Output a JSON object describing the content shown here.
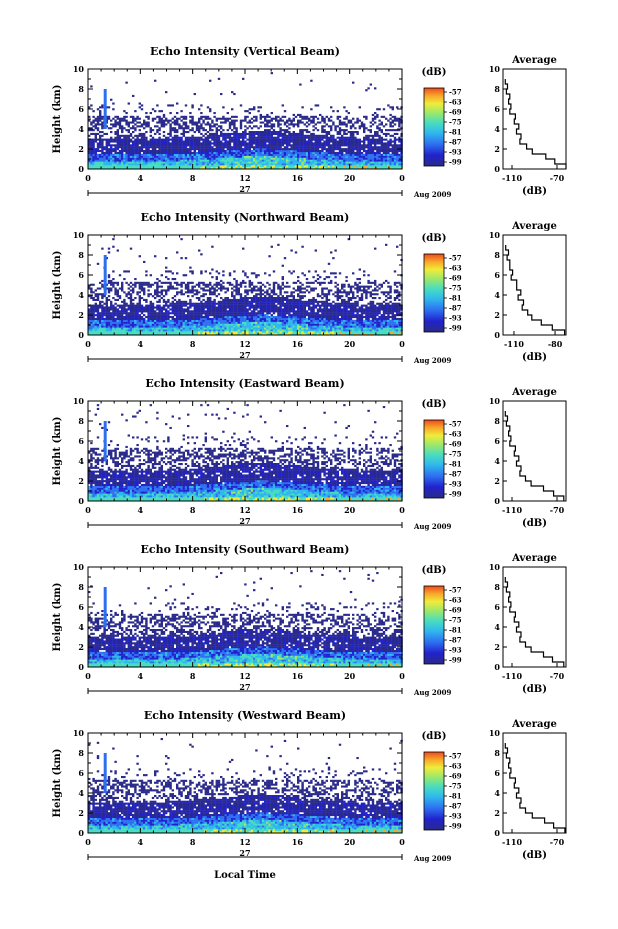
{
  "chart_data": [
    {
      "type": "heatmap",
      "title": "Echo Intensity (Vertical Beam)",
      "ylabel": "Height (km)",
      "ylim": [
        0,
        10
      ],
      "yticks": [
        "0",
        "2",
        "4",
        "6",
        "8",
        "10"
      ],
      "xlim": [
        0,
        24
      ],
      "xticks": [
        "0",
        "4",
        "8",
        "12",
        "16",
        "20",
        "0"
      ],
      "date_label": "27",
      "date_suffix": "Aug 2009",
      "colorbar": {
        "unit": "(dB)",
        "ticks": [
          "-57",
          "-63",
          "-69",
          "-75",
          "-81",
          "-87",
          "-93",
          "-99"
        ]
      },
      "average": {
        "title": "Average",
        "xlabel": "(dB)",
        "xticks": [
          "-110",
          "-70"
        ],
        "xlim": [
          -118,
          -62
        ],
        "profile": [
          [
            -62,
            0.0
          ],
          [
            -72,
            0.5
          ],
          [
            -80,
            1.0
          ],
          [
            -92,
            1.5
          ],
          [
            -97,
            2.0
          ],
          [
            -103,
            2.5
          ],
          [
            -102,
            3.0
          ],
          [
            -106,
            3.5
          ],
          [
            -104,
            4.0
          ],
          [
            -108,
            4.5
          ],
          [
            -107,
            5.0
          ],
          [
            -112,
            5.5
          ],
          [
            -111,
            6.0
          ],
          [
            -113,
            6.5
          ],
          [
            -112,
            7.0
          ],
          [
            -115,
            7.5
          ],
          [
            -114,
            8.0
          ],
          [
            -116,
            8.5
          ],
          [
            -116,
            9.0
          ]
        ]
      }
    },
    {
      "type": "heatmap",
      "title": "Echo Intensity (Northward Beam)",
      "ylabel": "Height (km)",
      "ylim": [
        0,
        10
      ],
      "yticks": [
        "0",
        "2",
        "4",
        "6",
        "8",
        "10"
      ],
      "xlim": [
        0,
        24
      ],
      "xticks": [
        "0",
        "4",
        "8",
        "12",
        "16",
        "20",
        "0"
      ],
      "date_label": "27",
      "date_suffix": "Aug 2009",
      "colorbar": {
        "unit": "(dB)",
        "ticks": [
          "-57",
          "-63",
          "-69",
          "-75",
          "-81",
          "-87",
          "-93",
          "-99"
        ]
      },
      "average": {
        "title": "Average",
        "xlabel": "(dB)",
        "xticks": [
          "-110",
          "-80"
        ],
        "xlim": [
          -118,
          -72
        ],
        "profile": [
          [
            -73,
            0.0
          ],
          [
            -82,
            0.5
          ],
          [
            -90,
            1.0
          ],
          [
            -97,
            1.5
          ],
          [
            -100,
            2.0
          ],
          [
            -104,
            2.5
          ],
          [
            -103,
            3.0
          ],
          [
            -107,
            3.5
          ],
          [
            -105,
            4.0
          ],
          [
            -108,
            4.5
          ],
          [
            -108,
            5.0
          ],
          [
            -112,
            5.5
          ],
          [
            -111,
            6.0
          ],
          [
            -113,
            6.5
          ],
          [
            -113,
            7.0
          ],
          [
            -115,
            7.5
          ],
          [
            -114,
            8.0
          ],
          [
            -116,
            8.5
          ],
          [
            -116,
            9.0
          ]
        ]
      }
    },
    {
      "type": "heatmap",
      "title": "Echo Intensity (Eastward Beam)",
      "ylabel": "Height (km)",
      "ylim": [
        0,
        10
      ],
      "yticks": [
        "0",
        "2",
        "4",
        "6",
        "8",
        "10"
      ],
      "xlim": [
        0,
        24
      ],
      "xticks": [
        "0",
        "4",
        "8",
        "12",
        "16",
        "20",
        "0"
      ],
      "date_label": "27",
      "date_suffix": "Aug 2009",
      "colorbar": {
        "unit": "(dB)",
        "ticks": [
          "-57",
          "-63",
          "-69",
          "-75",
          "-81",
          "-87",
          "-93",
          "-99"
        ]
      },
      "average": {
        "title": "Average",
        "xlabel": "(dB)",
        "xticks": [
          "-110",
          "-70"
        ],
        "xlim": [
          -118,
          -62
        ],
        "profile": [
          [
            -64,
            0.0
          ],
          [
            -73,
            0.5
          ],
          [
            -82,
            1.0
          ],
          [
            -93,
            1.5
          ],
          [
            -98,
            2.0
          ],
          [
            -103,
            2.5
          ],
          [
            -102,
            3.0
          ],
          [
            -106,
            3.5
          ],
          [
            -104,
            4.0
          ],
          [
            -108,
            4.5
          ],
          [
            -107,
            5.0
          ],
          [
            -112,
            5.5
          ],
          [
            -111,
            6.0
          ],
          [
            -113,
            6.5
          ],
          [
            -112,
            7.0
          ],
          [
            -115,
            7.5
          ],
          [
            -114,
            8.0
          ],
          [
            -116,
            8.5
          ],
          [
            -116,
            9.0
          ]
        ]
      }
    },
    {
      "type": "heatmap",
      "title": "Echo Intensity (Southward Beam)",
      "ylabel": "Height (km)",
      "ylim": [
        0,
        10
      ],
      "yticks": [
        "0",
        "2",
        "4",
        "6",
        "8",
        "10"
      ],
      "xlim": [
        0,
        24
      ],
      "xticks": [
        "0",
        "4",
        "8",
        "12",
        "16",
        "20",
        "0"
      ],
      "date_label": "27",
      "date_suffix": "Aug 2009",
      "colorbar": {
        "unit": "(dB)",
        "ticks": [
          "-57",
          "-63",
          "-69",
          "-75",
          "-81",
          "-87",
          "-93",
          "-99"
        ]
      },
      "average": {
        "title": "Average",
        "xlabel": "(dB)",
        "xticks": [
          "-110",
          "-70"
        ],
        "xlim": [
          -118,
          -62
        ],
        "profile": [
          [
            -64,
            0.0
          ],
          [
            -74,
            0.5
          ],
          [
            -82,
            1.0
          ],
          [
            -93,
            1.5
          ],
          [
            -98,
            2.0
          ],
          [
            -103,
            2.5
          ],
          [
            -102,
            3.0
          ],
          [
            -106,
            3.5
          ],
          [
            -104,
            4.0
          ],
          [
            -108,
            4.5
          ],
          [
            -107,
            5.0
          ],
          [
            -112,
            5.5
          ],
          [
            -111,
            6.0
          ],
          [
            -113,
            6.5
          ],
          [
            -112,
            7.0
          ],
          [
            -115,
            7.5
          ],
          [
            -114,
            8.0
          ],
          [
            -116,
            8.5
          ],
          [
            -116,
            9.0
          ]
        ]
      }
    },
    {
      "type": "heatmap",
      "title": "Echo Intensity (Westward Beam)",
      "ylabel": "Height (km)",
      "ylim": [
        0,
        10
      ],
      "yticks": [
        "0",
        "2",
        "4",
        "6",
        "8",
        "10"
      ],
      "xlim": [
        0,
        24
      ],
      "xticks": [
        "0",
        "4",
        "8",
        "12",
        "16",
        "20",
        "0"
      ],
      "date_label": "27",
      "date_suffix": "Aug 2009",
      "xlabel": "Local Time",
      "colorbar": {
        "unit": "(dB)",
        "ticks": [
          "-57",
          "-63",
          "-69",
          "-75",
          "-81",
          "-87",
          "-93",
          "-99"
        ]
      },
      "average": {
        "title": "Average",
        "xlabel": "(dB)",
        "xticks": [
          "-110",
          "-70"
        ],
        "xlim": [
          -118,
          -62
        ],
        "profile": [
          [
            -63,
            0.0
          ],
          [
            -73,
            0.5
          ],
          [
            -81,
            1.0
          ],
          [
            -92,
            1.5
          ],
          [
            -98,
            2.0
          ],
          [
            -103,
            2.5
          ],
          [
            -102,
            3.0
          ],
          [
            -106,
            3.5
          ],
          [
            -104,
            4.0
          ],
          [
            -108,
            4.5
          ],
          [
            -107,
            5.0
          ],
          [
            -112,
            5.5
          ],
          [
            -111,
            6.0
          ],
          [
            -113,
            6.5
          ],
          [
            -112,
            7.0
          ],
          [
            -115,
            7.5
          ],
          [
            -114,
            8.0
          ],
          [
            -116,
            8.5
          ],
          [
            -116,
            9.0
          ]
        ]
      }
    }
  ],
  "colors": {
    "colormap": [
      "#2a2a8a",
      "#2222cc",
      "#2e6ff0",
      "#2fb6ee",
      "#47dcc2",
      "#9ce86a",
      "#f0ec3a",
      "#f7a82a",
      "#f04a1e"
    ],
    "axis": "#000000"
  }
}
